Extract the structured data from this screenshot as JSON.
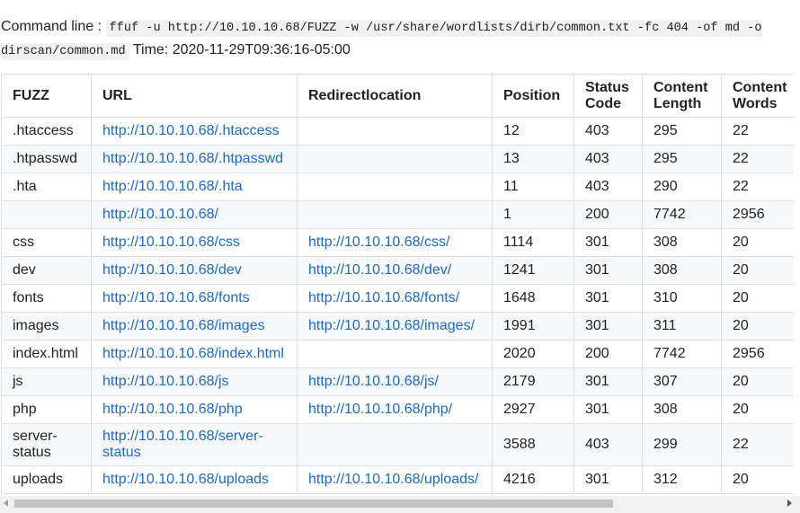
{
  "command": {
    "label": "Command line :",
    "value": "ffuf -u http://10.10.10.68/FUZZ -w /usr/share/wordlists/dirb/common.txt -fc 404 -of md -o dirscan/common.md",
    "time_label": "Time:",
    "time_value": "2020-11-29T09:36:16-05:00"
  },
  "table": {
    "headers": {
      "fuzz": "FUZZ",
      "url": "URL",
      "redirect": "Redirectlocation",
      "position": "Position",
      "status": "Status Code",
      "length": "Content Length",
      "words": "Content Words"
    },
    "rows": [
      {
        "fuzz": ".htaccess",
        "url": "http://10.10.10.68/.htaccess",
        "redirect": "",
        "position": "12",
        "status": "403",
        "length": "295",
        "words": "22"
      },
      {
        "fuzz": ".htpasswd",
        "url": "http://10.10.10.68/.htpasswd",
        "redirect": "",
        "position": "13",
        "status": "403",
        "length": "295",
        "words": "22"
      },
      {
        "fuzz": ".hta",
        "url": "http://10.10.10.68/.hta",
        "redirect": "",
        "position": "11",
        "status": "403",
        "length": "290",
        "words": "22"
      },
      {
        "fuzz": "",
        "url": "http://10.10.10.68/",
        "redirect": "",
        "position": "1",
        "status": "200",
        "length": "7742",
        "words": "2956"
      },
      {
        "fuzz": "css",
        "url": "http://10.10.10.68/css",
        "redirect": "http://10.10.10.68/css/",
        "position": "1114",
        "status": "301",
        "length": "308",
        "words": "20"
      },
      {
        "fuzz": "dev",
        "url": "http://10.10.10.68/dev",
        "redirect": "http://10.10.10.68/dev/",
        "position": "1241",
        "status": "301",
        "length": "308",
        "words": "20"
      },
      {
        "fuzz": "fonts",
        "url": "http://10.10.10.68/fonts",
        "redirect": "http://10.10.10.68/fonts/",
        "position": "1648",
        "status": "301",
        "length": "310",
        "words": "20"
      },
      {
        "fuzz": "images",
        "url": "http://10.10.10.68/images",
        "redirect": "http://10.10.10.68/images/",
        "position": "1991",
        "status": "301",
        "length": "311",
        "words": "20"
      },
      {
        "fuzz": "index.html",
        "url": "http://10.10.10.68/index.html",
        "redirect": "",
        "position": "2020",
        "status": "200",
        "length": "7742",
        "words": "2956"
      },
      {
        "fuzz": "js",
        "url": "http://10.10.10.68/js",
        "redirect": "http://10.10.10.68/js/",
        "position": "2179",
        "status": "301",
        "length": "307",
        "words": "20"
      },
      {
        "fuzz": "php",
        "url": "http://10.10.10.68/php",
        "redirect": "http://10.10.10.68/php/",
        "position": "2927",
        "status": "301",
        "length": "308",
        "words": "20"
      },
      {
        "fuzz": "server-status",
        "url": "http://10.10.10.68/server-status",
        "redirect": "",
        "position": "3588",
        "status": "403",
        "length": "299",
        "words": "22"
      },
      {
        "fuzz": "uploads",
        "url": "http://10.10.10.68/uploads",
        "redirect": "http://10.10.10.68/uploads/",
        "position": "4216",
        "status": "301",
        "length": "312",
        "words": "20"
      }
    ]
  },
  "colors": {
    "link": "#1b6ac9",
    "border": "#dfe2e5",
    "stripe": "#f6f8fa"
  },
  "scrollbar": {
    "horizontal_visible_fraction": 0.78
  }
}
